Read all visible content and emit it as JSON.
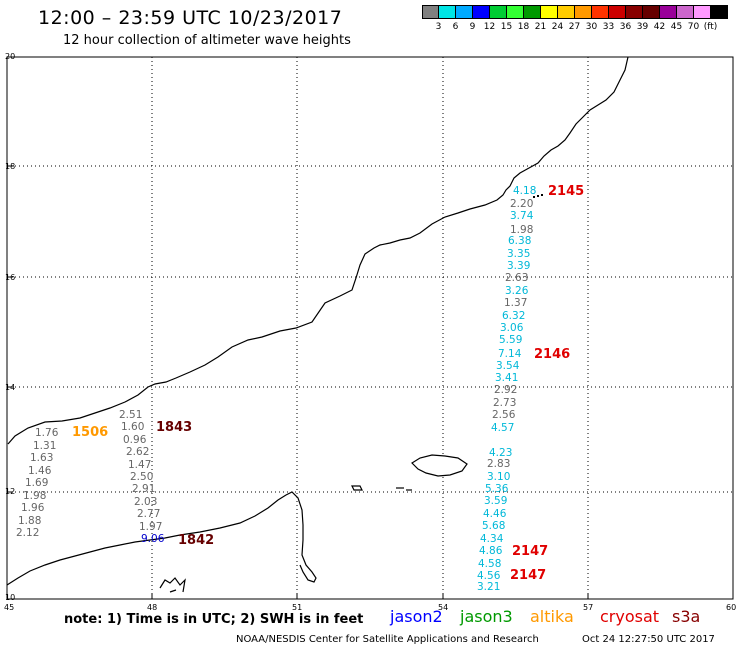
{
  "header": {
    "title": "12:00 – 23:59 UTC 10/23/2017",
    "subtitle": "12 hour collection of altimeter wave heights"
  },
  "scale": {
    "colors": [
      "#808080",
      "#00e5e5",
      "#00aaff",
      "#0000ff",
      "#00cc33",
      "#33ff33",
      "#009900",
      "#ffff00",
      "#ffcc00",
      "#ff9900",
      "#ff3300",
      "#cc0000",
      "#880000",
      "#660000",
      "#990099",
      "#cc66cc",
      "#ff99ff",
      "#000000"
    ],
    "labels": [
      "3",
      "6",
      "9",
      "12",
      "15",
      "18",
      "21",
      "24",
      "27",
      "30",
      "33",
      "36",
      "39",
      "42",
      "45",
      "70",
      "(ft)"
    ]
  },
  "axes": {
    "y_labels": [
      "20",
      "18",
      "16",
      "14",
      "12",
      "10"
    ],
    "x_labels": [
      "45",
      "48",
      "51",
      "54",
      "57",
      "60"
    ]
  },
  "observations_left": {
    "col_a": [
      "1.76",
      "1.31",
      "1.63",
      "1.46",
      "1.69",
      "1.98",
      "1.96",
      "1.88",
      "2.12"
    ],
    "col_b": [
      "2.51",
      "1.60",
      "0.96",
      "2.62",
      "1.47",
      "2.50",
      "2.91",
      "2.03",
      "2.77",
      "1.97",
      "9.06"
    ]
  },
  "observations_right": [
    "4.18",
    "2.20",
    "3.74",
    "1.98",
    "6.38",
    "3.35",
    "3.39",
    "2.63",
    "3.26",
    "1.37",
    "6.32",
    "3.06",
    "5.59",
    "7.14",
    "3.54",
    "3.41",
    "2.92",
    "2.73",
    "2.56",
    "4.57",
    "4.23",
    "2.83",
    "3.10",
    "5.36",
    "3.59",
    "4.46",
    "5.68",
    "4.34",
    "4.86",
    "4.58",
    "4.56",
    "3.21"
  ],
  "passes": {
    "p1506": "1506",
    "p1843": "1843",
    "p1842": "1842",
    "p2145": "2145",
    "p2146": "2146",
    "p2147a": "2147",
    "p2147b": "2147"
  },
  "note": "note: 1) Time is in UTC; 2) SWH is in feet",
  "legend": {
    "jason2": "jason2",
    "jason3": "jason3",
    "altika": "altika",
    "cryosat": "cryosat",
    "s3a": "s3a"
  },
  "footer": {
    "center": "NOAA/NESDIS Center for Satellite Applications and Research",
    "timestamp": "Oct 24 12:27:50 UTC 2017"
  }
}
